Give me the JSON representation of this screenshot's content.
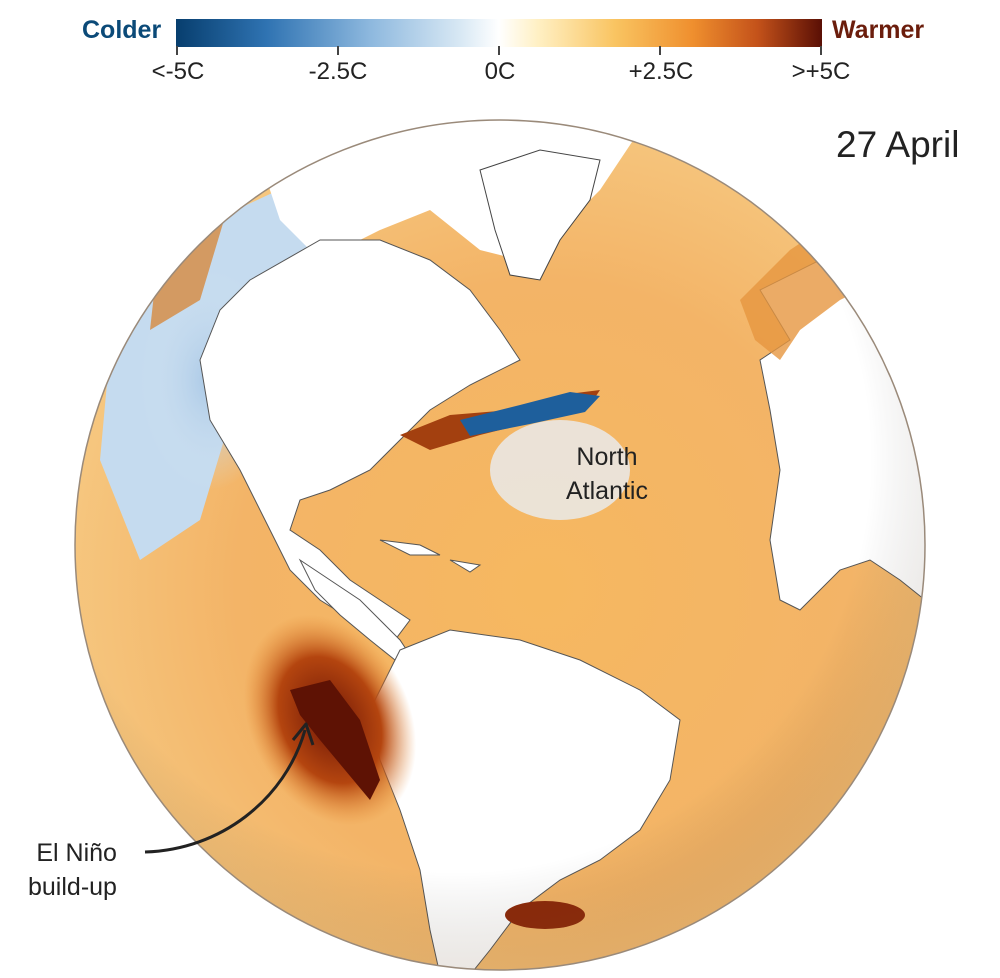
{
  "legend": {
    "cold_label": "Colder",
    "warm_label": "Warmer",
    "ticks": [
      "<-5C",
      "-2.5C",
      "0C",
      "+2.5C",
      ">+5C"
    ],
    "colors": {
      "coldest": "#073e6e",
      "neutral": "#ffffff",
      "warmest": "#5a0f05"
    }
  },
  "date": "27 April",
  "annotations": {
    "north_atlantic": [
      "North",
      "Atlantic"
    ],
    "el_nino": [
      "El Niño",
      "build-up"
    ]
  }
}
